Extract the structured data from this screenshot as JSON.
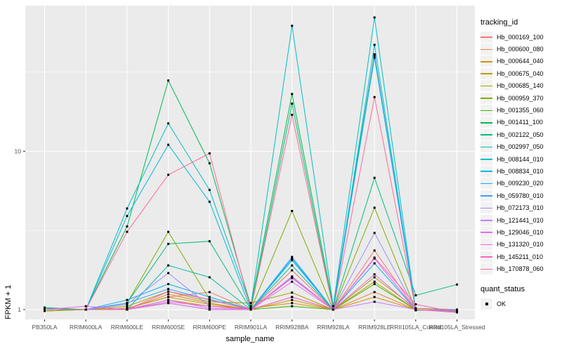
{
  "chart_data": {
    "type": "line",
    "title": "",
    "xlabel": "sample_name",
    "ylabel": "FPKM + 1",
    "y_scale": "log10",
    "y_ticks": [
      "1",
      "10"
    ],
    "y_tick_values": [
      1,
      10
    ],
    "y_minor_gridline_values": [
      3.162,
      31.623
    ],
    "ylim": [
      0.93,
      83
    ],
    "grid": "on",
    "legend_position": "right",
    "point_shape": "black-square",
    "categories": [
      "PB350LA",
      "RRIM600LA",
      "RRIM600LE",
      "RRIM600SE",
      "RRIM600PE",
      "RRIM901LA",
      "RRIM928BA",
      "RRIM928LA",
      "RRIM928LE",
      "RRII105LA_Control",
      "RRII105LA_Stressed"
    ],
    "series": [
      {
        "name": "Hb_000169_100",
        "color": "#F8766D",
        "values": [
          1.0,
          1.0,
          1.02,
          1.2,
          1.29,
          1.0,
          1.77,
          1.0,
          2.36,
          1.0,
          0.98
        ]
      },
      {
        "name": "Hb_000600_080",
        "color": "#EA8331",
        "values": [
          0.98,
          1.0,
          1.0,
          1.25,
          1.1,
          1.0,
          1.2,
          1.0,
          1.29,
          1.0,
          0.98
        ]
      },
      {
        "name": "Hb_000644_040",
        "color": "#D89000",
        "values": [
          1.0,
          1.0,
          1.0,
          1.15,
          1.05,
          1.02,
          1.1,
          1.0,
          1.2,
          1.0,
          1.0
        ]
      },
      {
        "name": "Hb_000675_040",
        "color": "#C09B00",
        "values": [
          0.98,
          1.0,
          1.02,
          1.2,
          1.08,
          1.0,
          1.15,
          1.0,
          1.5,
          1.0,
          0.98
        ]
      },
      {
        "name": "Hb_000685_140",
        "color": "#A3A500",
        "values": [
          1.0,
          1.0,
          1.05,
          1.3,
          1.12,
          1.1,
          1.28,
          1.0,
          1.6,
          1.02,
          1.0
        ]
      },
      {
        "name": "Hb_000959_370",
        "color": "#7CAE00",
        "values": [
          0.98,
          1.0,
          1.1,
          3.1,
          1.16,
          1.0,
          4.2,
          1.0,
          4.4,
          1.0,
          1.0
        ]
      },
      {
        "name": "Hb_001355_060",
        "color": "#39B600",
        "values": [
          1.0,
          1.0,
          1.0,
          1.1,
          1.0,
          1.0,
          1.05,
          1.0,
          1.45,
          1.0,
          1.0
        ]
      },
      {
        "name": "Hb_001411_100",
        "color": "#00BB4E",
        "values": [
          1.0,
          1.0,
          3.35,
          28,
          8.4,
          1.05,
          23,
          1.05,
          41,
          1.0,
          1.0
        ]
      },
      {
        "name": "Hb_002122_050",
        "color": "#00BF7D",
        "values": [
          1.03,
          1.0,
          1.1,
          2.6,
          2.7,
          1.0,
          20,
          1.0,
          6.8,
          1.23,
          1.44
        ]
      },
      {
        "name": "Hb_002997_050",
        "color": "#00C1A3",
        "values": [
          1.02,
          1.0,
          1.0,
          1.9,
          1.6,
          1.0,
          1.9,
          1.0,
          40,
          0.99,
          0.99
        ]
      },
      {
        "name": "Hb_008144_010",
        "color": "#00BFC4",
        "values": [
          1.0,
          1.0,
          4.35,
          15,
          5.7,
          1.05,
          62,
          1.05,
          70,
          1.0,
          0.99
        ]
      },
      {
        "name": "Hb_008834_010",
        "color": "#00BAE0",
        "values": [
          1.0,
          1.0,
          3.9,
          11,
          4.8,
          1.0,
          2.1,
          1.0,
          47,
          1.0,
          0.99
        ]
      },
      {
        "name": "Hb_009230_020",
        "color": "#00B0F6",
        "values": [
          1.0,
          1.0,
          1.15,
          1.45,
          1.2,
          1.0,
          2.05,
          1.0,
          1.96,
          1.0,
          1.0
        ]
      },
      {
        "name": "Hb_059780_010",
        "color": "#35A2FF",
        "values": [
          1.0,
          1.0,
          1.1,
          1.35,
          1.15,
          1.0,
          2.15,
          1.0,
          39,
          1.0,
          1.0
        ]
      },
      {
        "name": "Hb_072173_010",
        "color": "#9590FF",
        "values": [
          1.0,
          1.0,
          1.08,
          1.7,
          1.05,
          1.0,
          1.62,
          1.0,
          3.05,
          1.0,
          1.0
        ]
      },
      {
        "name": "Hb_121441_010",
        "color": "#C77CFF",
        "values": [
          1.0,
          1.0,
          1.0,
          1.15,
          1.02,
          1.0,
          1.58,
          1.0,
          1.12,
          1.0,
          1.0
        ]
      },
      {
        "name": "Hb_129046_010",
        "color": "#E76BF3",
        "values": [
          1.0,
          1.05,
          1.0,
          1.1,
          1.0,
          1.0,
          1.5,
          1.0,
          2.1,
          1.0,
          0.97
        ]
      },
      {
        "name": "Hb_131320_010",
        "color": "#FA62DB",
        "values": [
          1.0,
          1.0,
          1.0,
          1.12,
          1.05,
          1.0,
          1.2,
          1.0,
          1.67,
          1.0,
          0.96
        ]
      },
      {
        "name": "Hb_145211_010",
        "color": "#FF62BC",
        "values": [
          1.0,
          1.0,
          1.0,
          1.3,
          1.16,
          1.0,
          1.6,
          1.0,
          2.13,
          1.08,
          0.96
        ]
      },
      {
        "name": "Hb_170878_060",
        "color": "#FF6A98",
        "values": [
          1.0,
          1.0,
          3.1,
          7.1,
          9.7,
          1.0,
          17,
          1.0,
          22,
          1.0,
          0.96
        ]
      }
    ],
    "legend": {
      "series_title": "tracking_id",
      "status_title": "quant_status",
      "status_items": [
        {
          "label": "OK"
        }
      ]
    }
  },
  "colors": {
    "panel_bg": "#EBEBEB",
    "grid": "#FFFFFF",
    "tick_label": "#4D4D4D",
    "tick_mark": "#333333",
    "point": "#000000",
    "legend_key_bg": "#F2F2F2"
  }
}
